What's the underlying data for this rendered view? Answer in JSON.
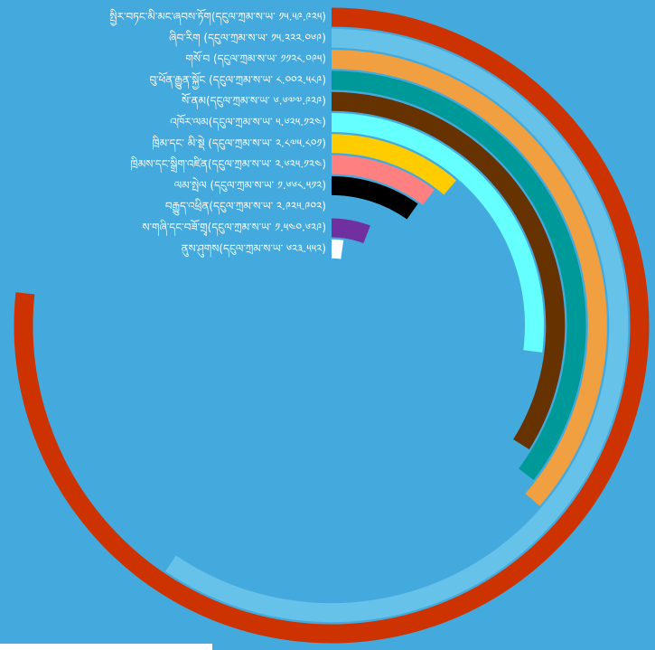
{
  "chart_data": {
    "type": "radial-bar",
    "categories": [
      "སྤྱིར་བཏང་མི་མང་ཞབས་ཏོག(དངུལ་ཀྲམ་ས་ཡ་ ༡༥.༥༩.༩༢༥)",
      "ཞིབ་རིག (དངུལ་ཀྲམ་ས་ཡ་ ༡༥.༢༢༢.༠༦༩)",
      "གསོ་བ (དངུལ་ཀྲམ་ས་ཡ་ ༡༡༢༨.༠༩༥)",
      "བུ་ཕོན་རྒྱུན་སྐྱོང (དངུལ་ཀྲམ་ས་ཡ་ ༨.༠༠༢.༥༨༩)",
      "སོ་ནམ(དངུལ་ཀྲམ་ས་ཡ་ ༦.༦༧༧.༩༢༩)",
      "འཁོར་ལམ(དངུལ་ཀྲམ་ས་ཡ་ ༥.༦༢༥.༡༢༤)",
      "ཁྲིམ་དང་ མི་སྡེ (དངུལ་ཀྲམ་ས་ཡ་ ༢.༨༧༥.༨༠༡)",
      "ཁྲིམས་དང་སྒྲིག་འཛིན(དངུལ་ཀྲམ་ས་ཡ་ ༢.༦༢༥.༡༢༤)",
      "ལམ་སྤེལ (དངུལ་ཀྲམ་ས་ཡ་ ༡.༦༦༨.༥༡༢)",
      "བརྒྱུད་འཕྲིན(དངུལ་ཀྲམ་ས་ཡ་ ༢.༩༢༥.༩༠༢)",
      "ས་གཞི་དང་བཟོ་གྲྭ(དངུལ་ཀྲམ་ས་ཡ་ ༡.༥༤༠.༦༢༩)",
      "ནུས་ཤུགས(དངུལ་ཀྲམ་ས་ཡ་ ༦༢༣.༥༥༢)"
    ],
    "values": [
      15.6,
      12.1,
      7.4,
      7.2,
      6.9,
      5.5,
      2.3,
      2.1,
      2.0,
      null,
      1.2,
      0.45
    ],
    "colors": [
      "#cc3300",
      "#66c2e8",
      "#f0a040",
      "#009999",
      "#663300",
      "#66ffff",
      "#ffcc00",
      "#ff8080",
      "#000000",
      "#999999",
      "#7030a0",
      "#ffffff"
    ]
  }
}
